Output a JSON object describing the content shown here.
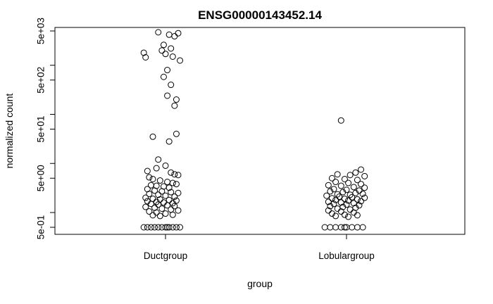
{
  "chart_data": {
    "type": "scatter",
    "title": "ENSG00000143452.14",
    "xlabel": "group",
    "ylabel": "normalized count",
    "categories": [
      "Ductgroup",
      "Lobulargroup"
    ],
    "y_scale": "log",
    "ylim": [
      0.5,
      5000
    ],
    "y_ticks": [
      {
        "value": 0.5,
        "label": "5e-01"
      },
      {
        "value": 5,
        "label": "5e+00"
      },
      {
        "value": 50,
        "label": "5e+01"
      },
      {
        "value": 500,
        "label": "5e+02"
      },
      {
        "value": 5000,
        "label": "5e+03"
      }
    ],
    "y_minor_ticks": [
      1,
      10,
      100,
      1000
    ],
    "grid": false,
    "series": [
      {
        "category": "Ductgroup",
        "points": [
          {
            "x": 0.96,
            "y": 4700
          },
          {
            "x": 1.02,
            "y": 4200
          },
          {
            "x": 1.05,
            "y": 3900
          },
          {
            "x": 1.07,
            "y": 4500
          },
          {
            "x": 0.99,
            "y": 2600
          },
          {
            "x": 1.03,
            "y": 2200
          },
          {
            "x": 0.98,
            "y": 2000
          },
          {
            "x": 1.04,
            "y": 1500
          },
          {
            "x": 0.88,
            "y": 1800
          },
          {
            "x": 0.89,
            "y": 1450
          },
          {
            "x": 1.08,
            "y": 1250
          },
          {
            "x": 1.0,
            "y": 1700
          },
          {
            "x": 1.01,
            "y": 800
          },
          {
            "x": 0.99,
            "y": 580
          },
          {
            "x": 1.03,
            "y": 400
          },
          {
            "x": 1.01,
            "y": 240
          },
          {
            "x": 1.06,
            "y": 200
          },
          {
            "x": 1.05,
            "y": 150
          },
          {
            "x": 0.93,
            "y": 35
          },
          {
            "x": 1.02,
            "y": 28
          },
          {
            "x": 1.06,
            "y": 40
          },
          {
            "x": 1.0,
            "y": 9
          },
          {
            "x": 0.96,
            "y": 12
          },
          {
            "x": 0.95,
            "y": 8
          },
          {
            "x": 0.9,
            "y": 7
          },
          {
            "x": 1.03,
            "y": 6.5
          },
          {
            "x": 1.05,
            "y": 6
          },
          {
            "x": 1.07,
            "y": 5.8
          },
          {
            "x": 0.91,
            "y": 5.2
          },
          {
            "x": 0.93,
            "y": 4.8
          },
          {
            "x": 0.97,
            "y": 4.5
          },
          {
            "x": 1.01,
            "y": 4.2
          },
          {
            "x": 1.04,
            "y": 4.0
          },
          {
            "x": 1.06,
            "y": 3.8
          },
          {
            "x": 0.92,
            "y": 3.6
          },
          {
            "x": 0.95,
            "y": 3.5
          },
          {
            "x": 0.99,
            "y": 3.4
          },
          {
            "x": 1.02,
            "y": 3.2
          },
          {
            "x": 0.9,
            "y": 3.0
          },
          {
            "x": 0.94,
            "y": 2.8
          },
          {
            "x": 0.98,
            "y": 2.7
          },
          {
            "x": 1.03,
            "y": 2.6
          },
          {
            "x": 1.07,
            "y": 2.5
          },
          {
            "x": 0.91,
            "y": 2.4
          },
          {
            "x": 0.96,
            "y": 2.3
          },
          {
            "x": 1.0,
            "y": 2.2
          },
          {
            "x": 1.05,
            "y": 2.1
          },
          {
            "x": 0.89,
            "y": 2.0
          },
          {
            "x": 0.93,
            "y": 1.9
          },
          {
            "x": 0.97,
            "y": 1.85
          },
          {
            "x": 1.02,
            "y": 1.8
          },
          {
            "x": 1.06,
            "y": 1.75
          },
          {
            "x": 0.9,
            "y": 1.7
          },
          {
            "x": 0.95,
            "y": 1.65
          },
          {
            "x": 0.99,
            "y": 1.6
          },
          {
            "x": 1.04,
            "y": 1.55
          },
          {
            "x": 0.92,
            "y": 1.5
          },
          {
            "x": 0.96,
            "y": 1.45
          },
          {
            "x": 1.01,
            "y": 1.4
          },
          {
            "x": 1.05,
            "y": 1.35
          },
          {
            "x": 0.89,
            "y": 1.3
          },
          {
            "x": 0.94,
            "y": 1.25
          },
          {
            "x": 0.98,
            "y": 1.2
          },
          {
            "x": 1.03,
            "y": 1.15
          },
          {
            "x": 1.07,
            "y": 1.1
          },
          {
            "x": 0.91,
            "y": 1.05
          },
          {
            "x": 0.95,
            "y": 1.0
          },
          {
            "x": 1.0,
            "y": 0.95
          },
          {
            "x": 1.04,
            "y": 0.9
          },
          {
            "x": 0.93,
            "y": 0.88
          },
          {
            "x": 0.97,
            "y": 0.85
          },
          {
            "x": 0.88,
            "y": 0.5
          },
          {
            "x": 0.9,
            "y": 0.5
          },
          {
            "x": 0.92,
            "y": 0.5
          },
          {
            "x": 0.94,
            "y": 0.5
          },
          {
            "x": 0.96,
            "y": 0.5
          },
          {
            "x": 0.98,
            "y": 0.5
          },
          {
            "x": 1.0,
            "y": 0.5
          },
          {
            "x": 1.02,
            "y": 0.5
          },
          {
            "x": 1.04,
            "y": 0.5
          },
          {
            "x": 1.06,
            "y": 0.5
          },
          {
            "x": 1.08,
            "y": 0.5
          },
          {
            "x": 1.01,
            "y": 0.5
          }
        ]
      },
      {
        "category": "Lobulargroup",
        "points": [
          {
            "x": 1.97,
            "y": 75
          },
          {
            "x": 2.08,
            "y": 7.5
          },
          {
            "x": 2.05,
            "y": 6.5
          },
          {
            "x": 1.95,
            "y": 6.0
          },
          {
            "x": 2.02,
            "y": 5.8
          },
          {
            "x": 2.1,
            "y": 5.5
          },
          {
            "x": 1.92,
            "y": 5.0
          },
          {
            "x": 1.99,
            "y": 4.8
          },
          {
            "x": 2.06,
            "y": 4.6
          },
          {
            "x": 1.94,
            "y": 4.2
          },
          {
            "x": 2.01,
            "y": 4.0
          },
          {
            "x": 2.08,
            "y": 3.8
          },
          {
            "x": 1.9,
            "y": 3.6
          },
          {
            "x": 1.97,
            "y": 3.5
          },
          {
            "x": 2.04,
            "y": 3.3
          },
          {
            "x": 2.1,
            "y": 3.2
          },
          {
            "x": 1.93,
            "y": 3.0
          },
          {
            "x": 2.0,
            "y": 2.9
          },
          {
            "x": 2.07,
            "y": 2.8
          },
          {
            "x": 1.91,
            "y": 2.7
          },
          {
            "x": 1.98,
            "y": 2.6
          },
          {
            "x": 2.05,
            "y": 2.5
          },
          {
            "x": 2.09,
            "y": 2.4
          },
          {
            "x": 1.95,
            "y": 2.35
          },
          {
            "x": 2.02,
            "y": 2.3
          },
          {
            "x": 1.89,
            "y": 2.2
          },
          {
            "x": 1.96,
            "y": 2.1
          },
          {
            "x": 2.03,
            "y": 2.05
          },
          {
            "x": 2.1,
            "y": 2.0
          },
          {
            "x": 1.92,
            "y": 1.95
          },
          {
            "x": 1.99,
            "y": 1.9
          },
          {
            "x": 2.06,
            "y": 1.85
          },
          {
            "x": 1.94,
            "y": 1.8
          },
          {
            "x": 2.01,
            "y": 1.75
          },
          {
            "x": 2.08,
            "y": 1.7
          },
          {
            "x": 1.9,
            "y": 1.65
          },
          {
            "x": 1.97,
            "y": 1.6
          },
          {
            "x": 2.04,
            "y": 1.55
          },
          {
            "x": 1.93,
            "y": 1.5
          },
          {
            "x": 2.0,
            "y": 1.45
          },
          {
            "x": 2.07,
            "y": 1.4
          },
          {
            "x": 1.91,
            "y": 1.35
          },
          {
            "x": 1.98,
            "y": 1.3
          },
          {
            "x": 2.05,
            "y": 1.25
          },
          {
            "x": 1.95,
            "y": 1.2
          },
          {
            "x": 2.02,
            "y": 1.15
          },
          {
            "x": 1.9,
            "y": 1.1
          },
          {
            "x": 1.97,
            "y": 1.05
          },
          {
            "x": 2.04,
            "y": 1.0
          },
          {
            "x": 1.92,
            "y": 0.95
          },
          {
            "x": 1.99,
            "y": 0.9
          },
          {
            "x": 2.06,
            "y": 0.88
          },
          {
            "x": 1.94,
            "y": 0.85
          },
          {
            "x": 2.01,
            "y": 0.82
          },
          {
            "x": 1.88,
            "y": 0.5
          },
          {
            "x": 1.91,
            "y": 0.5
          },
          {
            "x": 1.94,
            "y": 0.5
          },
          {
            "x": 1.97,
            "y": 0.5
          },
          {
            "x": 2.0,
            "y": 0.5
          },
          {
            "x": 2.03,
            "y": 0.5
          },
          {
            "x": 2.06,
            "y": 0.5
          },
          {
            "x": 2.09,
            "y": 0.5
          },
          {
            "x": 1.99,
            "y": 0.5
          }
        ]
      }
    ]
  }
}
